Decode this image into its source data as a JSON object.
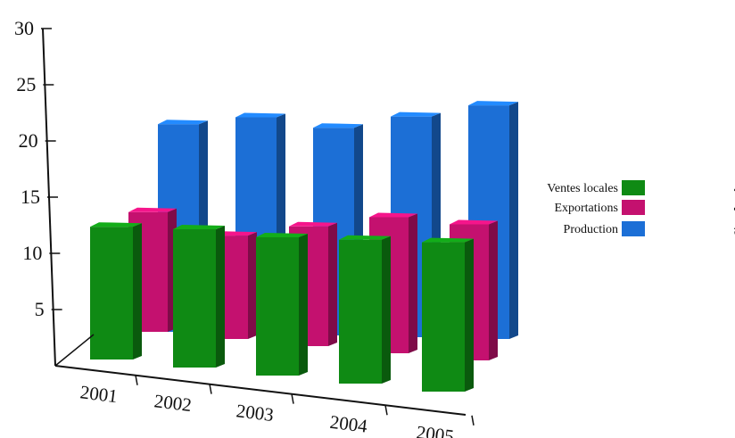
{
  "chart_data": {
    "type": "bar",
    "categories": [
      "2001",
      "2002",
      "2003",
      "2004",
      "2005"
    ],
    "ylim": [
      0,
      30
    ],
    "yticks": [
      5,
      10,
      15,
      20,
      25,
      30
    ],
    "series": [
      {
        "name": "Ventes locales",
        "name_ar": "المبيعات المحلية",
        "color": "#0f8a14",
        "values": [
          12,
          12.5,
          12.5,
          13,
          13.5
        ]
      },
      {
        "name": "Exportations",
        "name_ar": "الصادرات",
        "color": "#c4116f",
        "values": [
          11,
          9.5,
          11,
          12.5,
          12.5
        ]
      },
      {
        "name": "Production",
        "name_ar": "الإنتاج",
        "color": "#1c6fd6",
        "values": [
          24,
          25,
          24,
          25.5,
          27
        ]
      }
    ],
    "legend_position": "right",
    "grid": false
  }
}
